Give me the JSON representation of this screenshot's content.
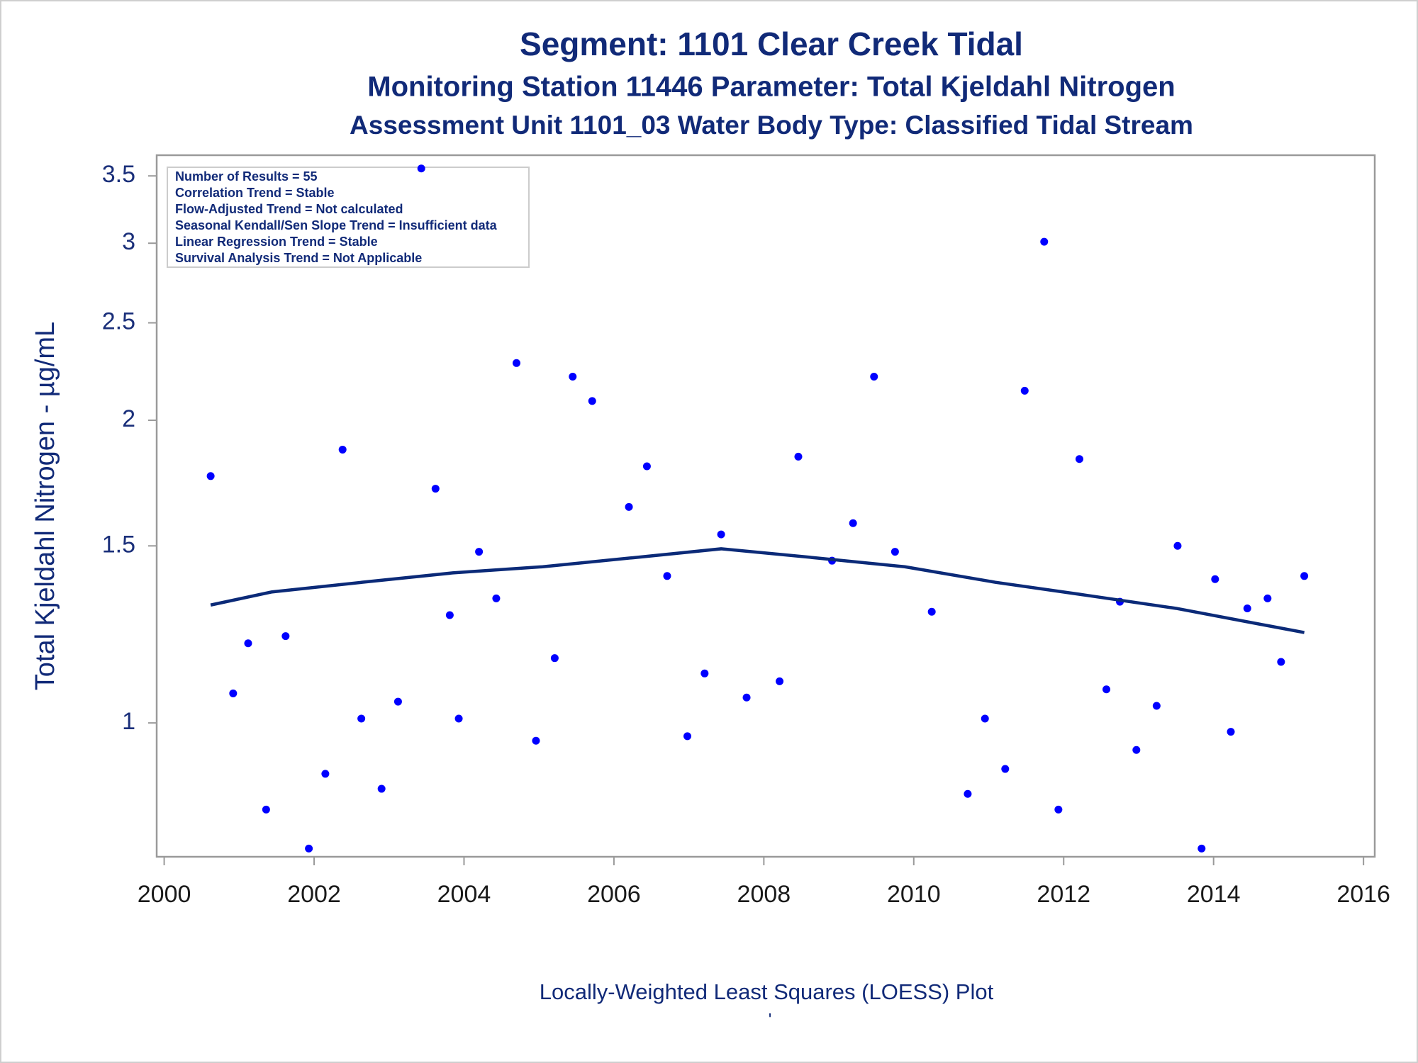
{
  "chart_data": {
    "type": "scatter",
    "title": "Segment: 1101  Clear Creek Tidal",
    "subtitle": "Monitoring Station 11446 Parameter: Total Kjeldahl Nitrogen",
    "subtitle2": "Assessment Unit 1101_03   Water Body Type: Classified Tidal Stream",
    "xlabel": "Locally-Weighted Least Squares (LOESS) Plot",
    "footnote": "'",
    "ylabel": "Total Kjeldahl Nitrogen -  µg/mL",
    "annotations": [
      "Number of Results = 55",
      "Correlation Trend = Stable",
      "Flow-Adjusted Trend = Not calculated",
      "Seasonal Kendall/Sen Slope Trend = Insufficient data",
      "Linear Regression Trend = Stable",
      "Survival Analysis Trend = Not Applicable"
    ],
    "xlim": [
      1999.9,
      2016.15
    ],
    "xticks": [
      2000,
      2002,
      2004,
      2006,
      2008,
      2010,
      2012,
      2014,
      2016
    ],
    "ylim": [
      0.736,
      3.67
    ],
    "yticks": [
      1,
      1.5,
      2,
      2.5,
      3,
      3.5
    ],
    "ylog": true,
    "series": [
      {
        "type": "scatter",
        "color": "#0000ff",
        "x": [
          2000.62,
          2000.92,
          2001.12,
          2001.36,
          2001.62,
          2001.93,
          2002.15,
          2002.38,
          2002.63,
          2002.9,
          2003.12,
          2003.43,
          2003.62,
          2003.81,
          2003.93,
          2004.2,
          2004.43,
          2004.7,
          2004.96,
          2005.21,
          2005.45,
          2005.71,
          2006.2,
          2006.44,
          2006.71,
          2006.98,
          2007.21,
          2007.43,
          2007.77,
          2008.21,
          2008.46,
          2008.91,
          2009.19,
          2009.47,
          2009.75,
          2010.24,
          2010.72,
          2010.95,
          2011.22,
          2011.48,
          2011.74,
          2011.93,
          2012.21,
          2012.57,
          2012.75,
          2012.97,
          2013.24,
          2013.52,
          2013.84,
          2014.02,
          2014.23,
          2014.45,
          2014.72,
          2014.9,
          2015.21
        ],
        "values": [
          1.76,
          1.07,
          1.2,
          0.82,
          1.22,
          0.75,
          0.89,
          1.87,
          1.01,
          0.86,
          1.05,
          3.56,
          1.71,
          1.28,
          1.01,
          1.48,
          1.33,
          2.28,
          0.96,
          1.16,
          2.21,
          2.09,
          1.64,
          1.8,
          1.4,
          0.97,
          1.12,
          1.54,
          1.06,
          1.1,
          1.84,
          1.45,
          1.58,
          2.21,
          1.48,
          1.29,
          0.85,
          1.01,
          0.9,
          2.14,
          3.01,
          0.82,
          1.83,
          1.08,
          1.32,
          0.94,
          1.04,
          1.5,
          0.75,
          1.39,
          0.98,
          1.3,
          1.33,
          1.15,
          1.4
        ]
      },
      {
        "type": "line",
        "color": "#0b2a78",
        "x": [
          2000.62,
          2001.44,
          2002.64,
          2003.85,
          2005.05,
          2006.26,
          2007.43,
          2008.67,
          2009.88,
          2011.09,
          2012.29,
          2013.5,
          2014.71,
          2015.21
        ],
        "values": [
          1.31,
          1.35,
          1.38,
          1.41,
          1.43,
          1.46,
          1.49,
          1.46,
          1.43,
          1.38,
          1.34,
          1.3,
          1.25,
          1.23
        ]
      }
    ]
  }
}
